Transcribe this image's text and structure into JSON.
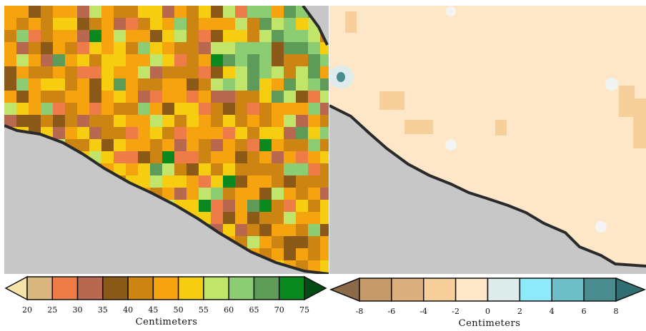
{
  "left_map": {
    "legend": {
      "ticks": [
        "20",
        "25",
        "30",
        "35",
        "40",
        "45",
        "50",
        "55",
        "60",
        "65",
        "70",
        "75"
      ],
      "colors": [
        "#f5e3a8",
        "#d9b67e",
        "#ee7c48",
        "#b8684e",
        "#8b5a18",
        "#cc8512",
        "#f5a30e",
        "#f7cd12",
        "#c1e46a",
        "#8ccc72",
        "#5e9a58",
        "#0a8a1e",
        "#044a14"
      ],
      "title": "Centimeters"
    }
  },
  "right_map": {
    "legend": {
      "ticks": [
        "-8",
        "-6",
        "-4",
        "-2",
        "0",
        "2",
        "4",
        "6",
        "8"
      ],
      "colors": [
        "#8b6a4a",
        "#c49a6a",
        "#dcb07e",
        "#f6cf9a",
        "#fde7c8",
        "#deecec",
        "#8eeaf8",
        "#6ec0c8",
        "#4a8c8e",
        "#2f6f74"
      ],
      "title": "Centimeters"
    }
  }
}
